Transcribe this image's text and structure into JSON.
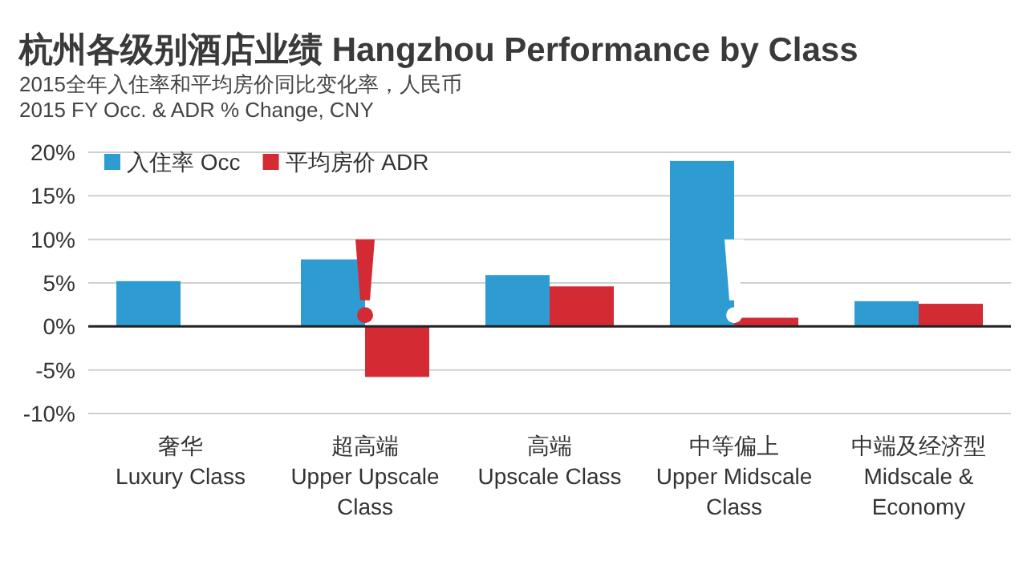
{
  "chart_data": {
    "type": "bar",
    "title": "杭州各级别酒店业绩 Hangzhou Performance by Class",
    "subtitle": "2015全年入住率和平均房价同比变化率，人民币\n2015 FY Occ. & ADR % Change, CNY",
    "categories": [
      "奢华\nLuxury Class",
      "超高端\nUpper Upscale\nClass",
      "高端\nUpscale Class",
      "中等偏上\nUpper Midscale\nClass",
      "中端及经济型\nMidscale &\nEconomy"
    ],
    "series": [
      {
        "name": "入住率 Occ",
        "color": "#2e9bd2",
        "values": [
          5.2,
          7.7,
          5.9,
          19.0,
          2.9
        ]
      },
      {
        "name": "平均房价 ADR",
        "color": "#d42a34",
        "values": [
          null,
          -5.8,
          4.6,
          1.0,
          2.6
        ]
      }
    ],
    "ylim": [
      -10,
      20
    ],
    "yticks": [
      {
        "value": -10,
        "label": "-10%"
      },
      {
        "value": -5,
        "label": "-5%"
      },
      {
        "value": 0,
        "label": "0%"
      },
      {
        "value": 5,
        "label": "5%"
      },
      {
        "value": 10,
        "label": "10%"
      },
      {
        "value": 15,
        "label": "15%"
      },
      {
        "value": 20,
        "label": "20%"
      }
    ],
    "grid": "y",
    "legend": "top left"
  }
}
